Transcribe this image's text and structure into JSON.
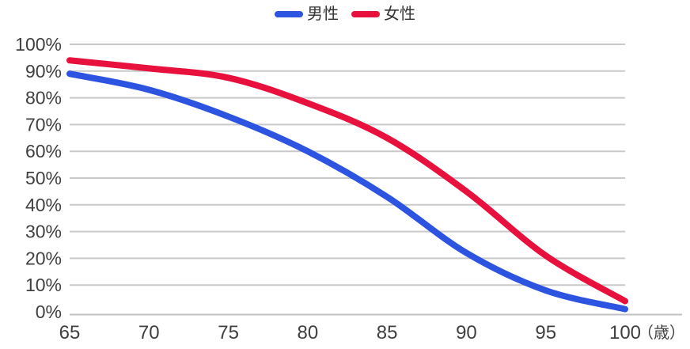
{
  "chart_data": {
    "type": "line",
    "title": "",
    "x": [
      65,
      70,
      75,
      80,
      85,
      90,
      95,
      100
    ],
    "x_tick_labels": [
      "65",
      "70",
      "75",
      "80",
      "85",
      "90",
      "95",
      "100"
    ],
    "x_unit_label": "（歳）",
    "y_tick_labels": [
      "0%",
      "10%",
      "20%",
      "30%",
      "40%",
      "50%",
      "60%",
      "70%",
      "80%",
      "90%",
      "100%"
    ],
    "ylim": [
      0,
      100
    ],
    "grid": "horizontal",
    "legend_position": "top-center",
    "series": [
      {
        "name": "男性",
        "color": "#2d54e0",
        "values": [
          89,
          83,
          73,
          60,
          43,
          22,
          8,
          1
        ]
      },
      {
        "name": "女性",
        "color": "#e8113e",
        "values": [
          94,
          91,
          87.5,
          78,
          65,
          45,
          21,
          4
        ]
      }
    ]
  },
  "colors": {
    "background": "#ffffff",
    "gridline": "#c9c9c9",
    "axis_line": "#c2c2c2",
    "tick_text": "#404040",
    "male_line": "#2d54e0",
    "female_line": "#e8113e"
  }
}
